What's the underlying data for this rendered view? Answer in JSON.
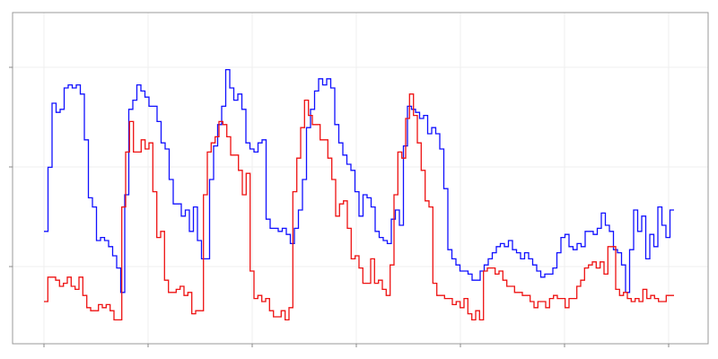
{
  "chart_data": {
    "type": "line",
    "step": "post",
    "title": "",
    "xlabel": "",
    "ylabel": "",
    "grid": true,
    "legend": "none",
    "tick_labels_shown": false,
    "x_tick_count": 7,
    "y_tick_count": 3,
    "colors": {
      "blue": "#1010ff",
      "red": "#ee1111",
      "grid": "#efefef",
      "frame": "#999999"
    },
    "series": [
      {
        "color": "#1010ff",
        "values": [
          0.33,
          0.54,
          0.75,
          0.72,
          0.73,
          0.8,
          0.81,
          0.8,
          0.81,
          0.78,
          0.63,
          0.44,
          0.41,
          0.3,
          0.31,
          0.3,
          0.28,
          0.25,
          0.21,
          0.13,
          0.45,
          0.73,
          0.76,
          0.81,
          0.79,
          0.77,
          0.74,
          0.74,
          0.69,
          0.62,
          0.6,
          0.5,
          0.42,
          0.42,
          0.38,
          0.4,
          0.33,
          0.41,
          0.3,
          0.24,
          0.24,
          0.5,
          0.61,
          0.68,
          0.74,
          0.86,
          0.8,
          0.76,
          0.78,
          0.73,
          0.62,
          0.6,
          0.59,
          0.62,
          0.63,
          0.37,
          0.34,
          0.34,
          0.33,
          0.34,
          0.32,
          0.29,
          0.34,
          0.4,
          0.5,
          0.67,
          0.73,
          0.79,
          0.83,
          0.81,
          0.83,
          0.8,
          0.68,
          0.62,
          0.58,
          0.55,
          0.53,
          0.46,
          0.38,
          0.45,
          0.44,
          0.41,
          0.33,
          0.31,
          0.3,
          0.29,
          0.37,
          0.4,
          0.35,
          0.61,
          0.74,
          0.73,
          0.72,
          0.7,
          0.71,
          0.65,
          0.67,
          0.65,
          0.6,
          0.47,
          0.27,
          0.24,
          0.22,
          0.2,
          0.2,
          0.19,
          0.17,
          0.17,
          0.2,
          0.22,
          0.24,
          0.26,
          0.28,
          0.29,
          0.28,
          0.3,
          0.27,
          0.26,
          0.24,
          0.26,
          0.24,
          0.22,
          0.2,
          0.18,
          0.19,
          0.19,
          0.21,
          0.26,
          0.31,
          0.32,
          0.28,
          0.27,
          0.29,
          0.28,
          0.33,
          0.33,
          0.32,
          0.34,
          0.39,
          0.35,
          0.33,
          0.27,
          0.26,
          0.22,
          0.13,
          0.27,
          0.4,
          0.33,
          0.38,
          0.24,
          0.32,
          0.28,
          0.41,
          0.35,
          0.31,
          0.4
        ],
        "x_start": 0,
        "x_step": 1
      },
      {
        "color": "#ee1111",
        "values": [
          0.1,
          0.18,
          0.18,
          0.17,
          0.15,
          0.16,
          0.18,
          0.15,
          0.14,
          0.18,
          0.12,
          0.08,
          0.07,
          0.07,
          0.09,
          0.08,
          0.09,
          0.07,
          0.04,
          0.04,
          0.41,
          0.59,
          0.69,
          0.59,
          0.59,
          0.63,
          0.6,
          0.62,
          0.46,
          0.31,
          0.33,
          0.17,
          0.13,
          0.13,
          0.14,
          0.15,
          0.12,
          0.13,
          0.06,
          0.07,
          0.07,
          0.45,
          0.59,
          0.62,
          0.64,
          0.69,
          0.68,
          0.64,
          0.58,
          0.58,
          0.53,
          0.45,
          0.52,
          0.2,
          0.11,
          0.12,
          0.1,
          0.11,
          0.07,
          0.05,
          0.05,
          0.07,
          0.04,
          0.08,
          0.46,
          0.57,
          0.67,
          0.76,
          0.71,
          0.68,
          0.68,
          0.63,
          0.63,
          0.57,
          0.5,
          0.38,
          0.42,
          0.43,
          0.34,
          0.24,
          0.25,
          0.21,
          0.16,
          0.16,
          0.24,
          0.16,
          0.17,
          0.14,
          0.12,
          0.22,
          0.45,
          0.59,
          0.57,
          0.7,
          0.78,
          0.71,
          0.62,
          0.53,
          0.43,
          0.41,
          0.16,
          0.12,
          0.12,
          0.11,
          0.11,
          0.09,
          0.1,
          0.08,
          0.11,
          0.06,
          0.04,
          0.07,
          0.04,
          0.2,
          0.21,
          0.21,
          0.19,
          0.2,
          0.17,
          0.15,
          0.15,
          0.13,
          0.13,
          0.12,
          0.12,
          0.1,
          0.08,
          0.1,
          0.1,
          0.08,
          0.11,
          0.12,
          0.11,
          0.11,
          0.08,
          0.11,
          0.11,
          0.15,
          0.17,
          0.21,
          0.22,
          0.23,
          0.21,
          0.23,
          0.19,
          0.28,
          0.28,
          0.14,
          0.12,
          0.13,
          0.11,
          0.1,
          0.11,
          0.1,
          0.14,
          0.11,
          0.12,
          0.11,
          0.1,
          0.1,
          0.12,
          0.12
        ]
      }
    ]
  }
}
